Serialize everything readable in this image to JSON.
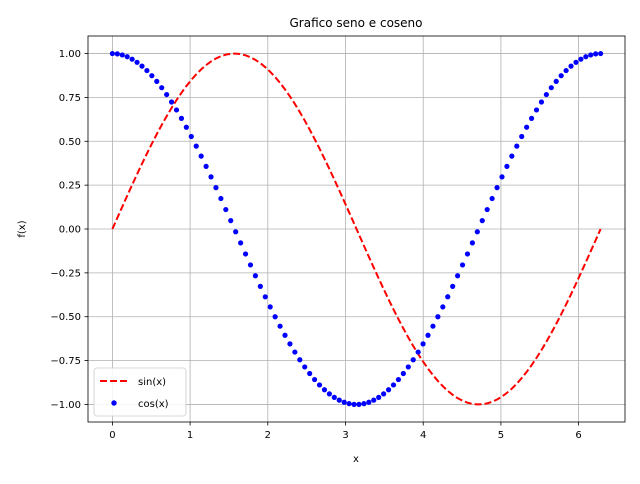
{
  "chart_data": {
    "type": "line",
    "title": "Grafico seno e coseno",
    "xlabel": "x",
    "ylabel": "f(x)",
    "xlim": [
      -0.314,
      6.597
    ],
    "ylim": [
      -1.1,
      1.1
    ],
    "xticks": [
      0,
      1,
      2,
      3,
      4,
      5,
      6
    ],
    "xtick_labels": [
      "0",
      "1",
      "2",
      "3",
      "4",
      "5",
      "6"
    ],
    "yticks": [
      -1.0,
      -0.75,
      -0.5,
      -0.25,
      0.0,
      0.25,
      0.5,
      0.75,
      1.0
    ],
    "ytick_labels": [
      "−1.00",
      "−0.75",
      "−0.50",
      "−0.25",
      "0.00",
      "0.25",
      "0.50",
      "0.75",
      "1.00"
    ],
    "grid": true,
    "legend_position": "lower-left",
    "x": {
      "start": 0,
      "end": 6.2832,
      "count": 100
    },
    "series": [
      {
        "name": "sin(x)",
        "function": "sin",
        "style": "dashed-line",
        "color": "#ff0000"
      },
      {
        "name": "cos(x)",
        "function": "cos",
        "style": "dots",
        "color": "#0000ff"
      }
    ]
  }
}
